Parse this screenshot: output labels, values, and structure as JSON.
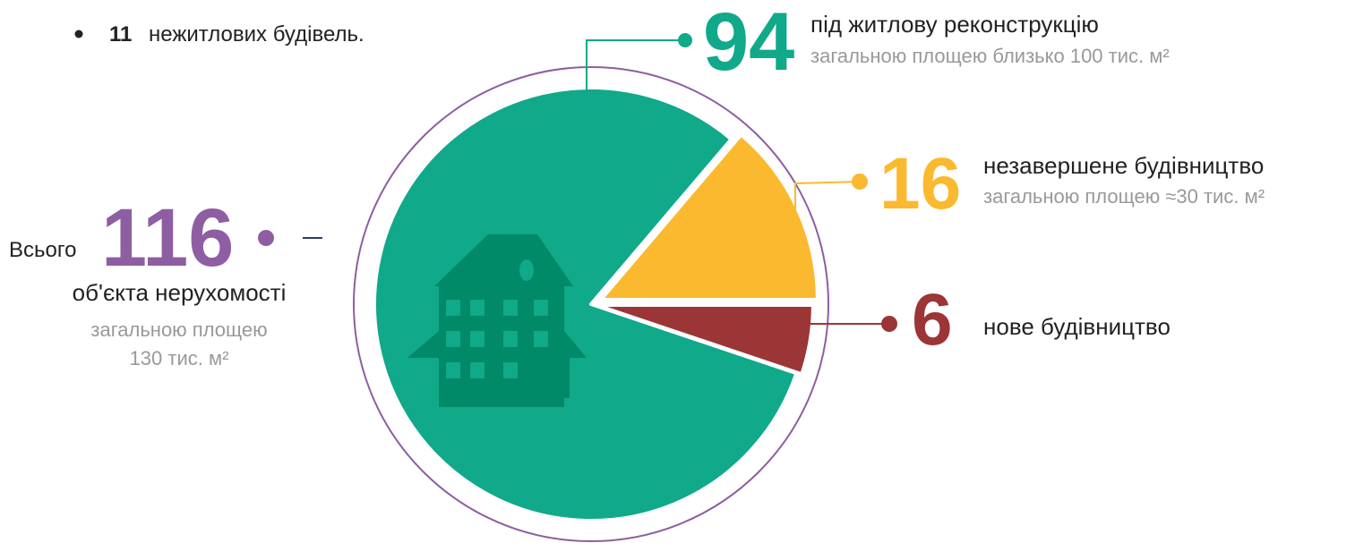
{
  "bullet": {
    "number": "11",
    "text": "нежитлових будівель."
  },
  "total": {
    "prefix": "Всього",
    "value": 116,
    "label": "об'єкта нерухомості",
    "note_line1": "загальною площею",
    "note_line2": "130 тис. м²"
  },
  "chart_data": {
    "type": "pie",
    "categories": [
      "під житлову реконструкцію",
      "незавершене будівництво",
      "нове будівництво"
    ],
    "values": [
      94,
      16,
      6
    ],
    "colors": [
      "#10a98a",
      "#fbb92f",
      "#9b3536"
    ],
    "subtitles": [
      "загальною площею близько 100 тис. м²",
      "загальною площею  ≈30 тис. м²",
      null
    ]
  }
}
